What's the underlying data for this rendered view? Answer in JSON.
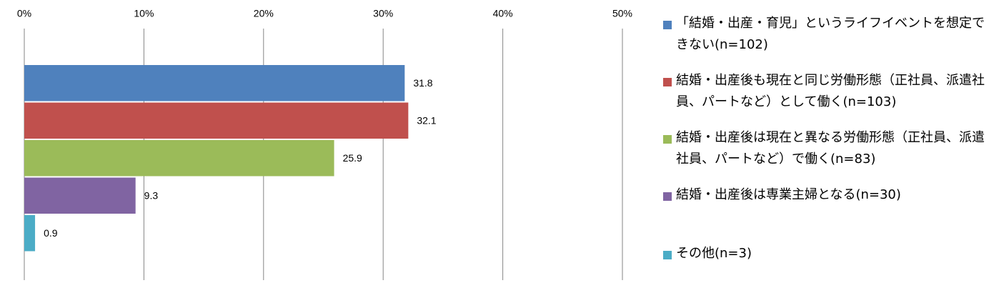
{
  "chart_data": {
    "type": "bar",
    "orientation": "horizontal",
    "categories": [
      null
    ],
    "series": [
      {
        "name": "「結婚・出産・育児」というライフイベントを想定できない(n=102)",
        "color": "#4f81bd",
        "values": [
          31.8
        ]
      },
      {
        "name": "結婚・出産後も現在と同じ労働形態（正社員、派遣社員、パートなど）として働く(n=103)",
        "color": "#c0504d",
        "values": [
          32.1
        ]
      },
      {
        "name": "結婚・出産後は現在と異なる労働形態（正社員、派遣社員、パートなど）で働く(n=83)",
        "color": "#9bbb59",
        "values": [
          25.9
        ]
      },
      {
        "name": "結婚・出産後は専業主婦となる(n=30)",
        "color": "#8064a2",
        "values": [
          9.3
        ]
      },
      {
        "name": "その他(n=3)",
        "color": "#4bacc6",
        "values": [
          0.9
        ]
      }
    ],
    "xlim": [
      0,
      50
    ],
    "xticks": [
      {
        "value": 0,
        "label": "0%"
      },
      {
        "value": 10,
        "label": "10%"
      },
      {
        "value": 20,
        "label": "20%"
      },
      {
        "value": 30,
        "label": "30%"
      },
      {
        "value": 40,
        "label": "40%"
      },
      {
        "value": 50,
        "label": "50%"
      }
    ],
    "grid": true,
    "legend": "right"
  }
}
